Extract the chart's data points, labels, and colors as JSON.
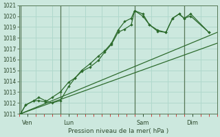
{
  "xlabel": "Pression niveau de la mer( hPa )",
  "bg_color": "#cce8de",
  "grid_color": "#b0d8cc",
  "line_color": "#2d6b2d",
  "vline_color": "#557755",
  "ylim": [
    1011,
    1021
  ],
  "yticks": [
    1011,
    1012,
    1013,
    1014,
    1015,
    1016,
    1017,
    1018,
    1019,
    1020,
    1021
  ],
  "xlim": [
    0,
    12
  ],
  "day_labels": [
    "Ven",
    "Lun",
    "Sam",
    "Dim"
  ],
  "day_positions": [
    0.5,
    3.0,
    7.5,
    10.5
  ],
  "vline_positions": [
    0.1,
    2.5,
    7.0,
    10.0
  ],
  "line1_x": [
    0.1,
    0.4,
    0.9,
    1.2,
    1.6,
    2.0,
    2.5,
    3.0,
    3.4,
    3.8,
    4.3,
    4.8,
    5.2,
    5.6,
    6.0,
    6.4,
    6.8,
    7.0,
    7.5,
    7.9,
    8.4,
    8.9,
    9.3,
    9.7,
    10.0,
    10.4,
    11.5
  ],
  "line1_y": [
    1011,
    1011.8,
    1012.2,
    1012.2,
    1012.1,
    1012.5,
    1013.0,
    1013.9,
    1014.3,
    1015.0,
    1015.6,
    1016.3,
    1016.8,
    1017.5,
    1018.7,
    1019.5,
    1019.8,
    1020.5,
    1020.0,
    1019.2,
    1018.6,
    1018.5,
    1019.8,
    1020.2,
    1019.8,
    1020.2,
    1018.5
  ],
  "line2_x": [
    0.1,
    0.4,
    0.9,
    1.2,
    1.6,
    2.0,
    2.5,
    3.0,
    3.4,
    3.8,
    4.3,
    4.8,
    5.2,
    5.6,
    6.0,
    6.4,
    6.8,
    7.0,
    7.5,
    7.9,
    8.4,
    8.9,
    9.3,
    9.7,
    10.0,
    10.4,
    11.5
  ],
  "line2_y": [
    1011,
    1011.8,
    1012.2,
    1012.5,
    1012.2,
    1012.0,
    1012.2,
    1013.5,
    1014.3,
    1014.9,
    1015.3,
    1015.9,
    1016.7,
    1017.4,
    1018.5,
    1018.8,
    1019.2,
    1020.5,
    1020.2,
    1019.2,
    1018.7,
    1018.5,
    1019.8,
    1020.2,
    1019.8,
    1020.0,
    1018.5
  ],
  "line3_x": [
    0.1,
    12.0
  ],
  "line3_y": [
    1011,
    1018.5
  ],
  "line4_x": [
    0.1,
    12.0
  ],
  "line4_y": [
    1011,
    1017.5
  ]
}
